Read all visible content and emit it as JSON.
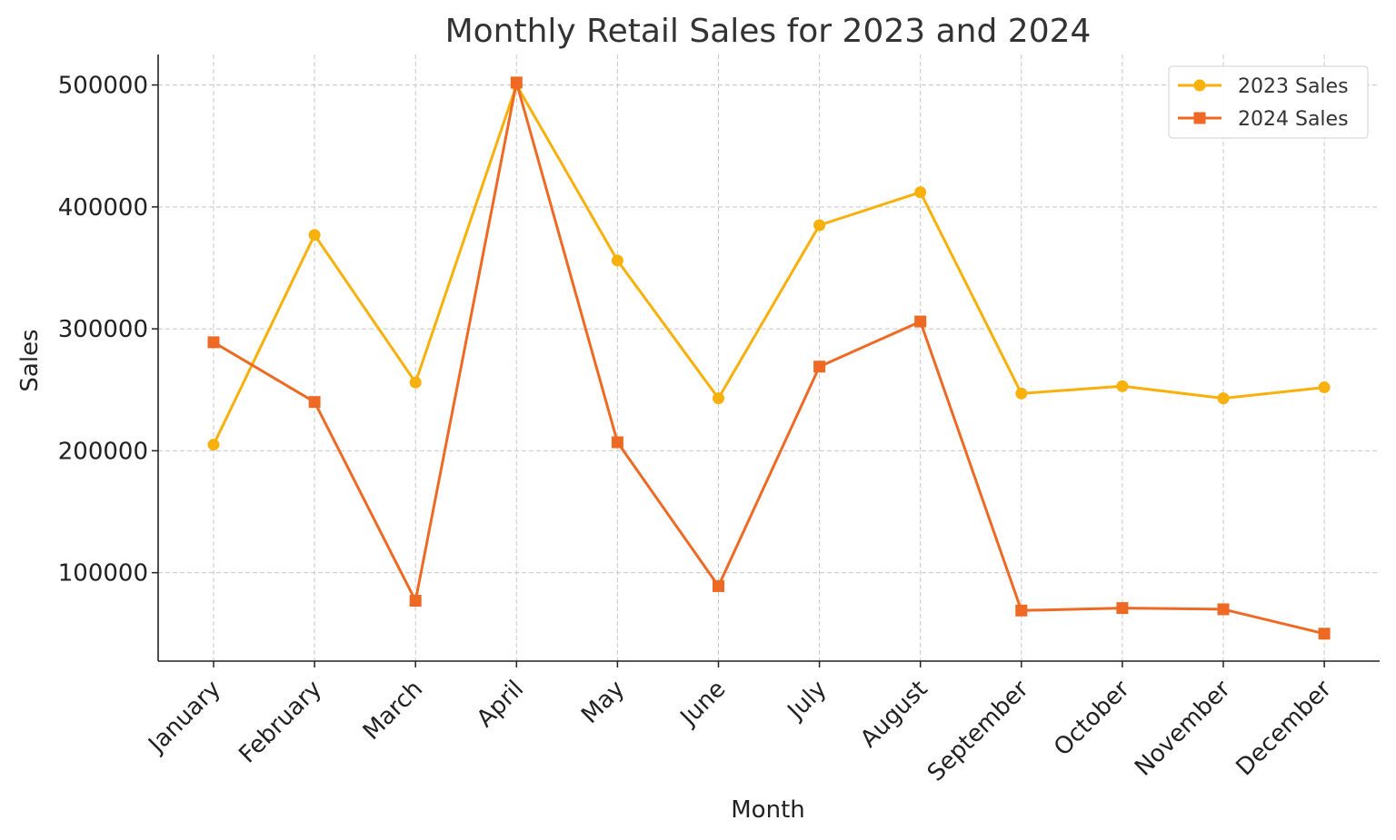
{
  "chart_data": {
    "type": "line",
    "title": "Monthly Retail Sales for 2023 and 2024",
    "xlabel": "Month",
    "ylabel": "Sales",
    "categories": [
      "January",
      "February",
      "March",
      "April",
      "May",
      "June",
      "July",
      "August",
      "September",
      "October",
      "November",
      "December"
    ],
    "series": [
      {
        "name": "2023 Sales",
        "color": "#f8b00b",
        "marker": "circle",
        "values": [
          205000,
          377000,
          256000,
          500000,
          356000,
          243000,
          385000,
          412000,
          247000,
          253000,
          243000,
          252000
        ]
      },
      {
        "name": "2024 Sales",
        "color": "#ee6a24",
        "marker": "square",
        "values": [
          289000,
          240000,
          77000,
          502000,
          207000,
          89000,
          269000,
          306000,
          69000,
          71000,
          70000,
          50000
        ]
      }
    ],
    "yticks": [
      100000,
      200000,
      300000,
      400000,
      500000
    ],
    "ytick_labels": [
      "100000",
      "200000",
      "300000",
      "400000",
      "500000"
    ],
    "ylim": [
      27500,
      525000
    ],
    "grid": true,
    "legend_position": "top-right"
  }
}
